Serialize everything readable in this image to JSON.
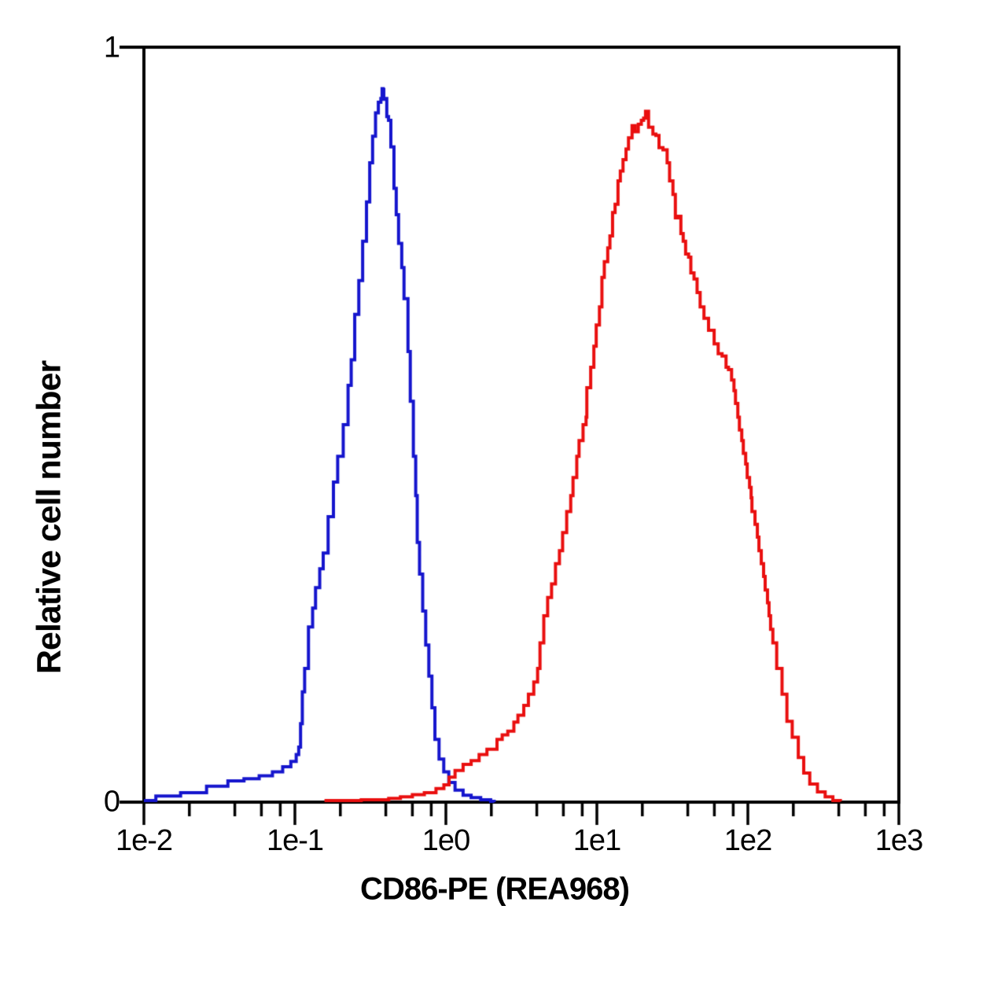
{
  "chart_data": {
    "type": "line",
    "subtype": "flow-cytometry-histogram-overlay",
    "title": "",
    "xlabel": "CD86-PE (REA968)",
    "ylabel": "Relative cell number",
    "x_scale": "log",
    "xlim": [
      0.01,
      1000
    ],
    "ylim": [
      0,
      1
    ],
    "grid": false,
    "legend": "none",
    "axis_color": "#000000",
    "x_ticks": [
      {
        "value": 0.01,
        "label": "1e-2"
      },
      {
        "value": 0.1,
        "label": "1e-1"
      },
      {
        "value": 1,
        "label": "1e0"
      },
      {
        "value": 10,
        "label": "1e1"
      },
      {
        "value": 100,
        "label": "1e2"
      },
      {
        "value": 1000,
        "label": "1e3"
      }
    ],
    "x_minor_tick_multipliers": [
      2,
      4,
      6,
      8
    ],
    "y_ticks": [
      {
        "value": 1,
        "label": "1"
      },
      {
        "value": 0,
        "label": "0"
      }
    ],
    "series": [
      {
        "name": "blue-histogram",
        "color": "#1515CD",
        "peak": {
          "x": 0.38,
          "y": 0.945
        },
        "points": [
          [
            0.01,
            0.002
          ],
          [
            0.012,
            0.008
          ],
          [
            0.0175,
            0.0125
          ],
          [
            0.026,
            0.021
          ],
          [
            0.036,
            0.028
          ],
          [
            0.046,
            0.031
          ],
          [
            0.058,
            0.035
          ],
          [
            0.071,
            0.04
          ],
          [
            0.083,
            0.047
          ],
          [
            0.094,
            0.054
          ],
          [
            0.102,
            0.063
          ],
          [
            0.106,
            0.073
          ],
          [
            0.109,
            0.104
          ],
          [
            0.112,
            0.146
          ],
          [
            0.116,
            0.177
          ],
          [
            0.123,
            0.232
          ],
          [
            0.131,
            0.257
          ],
          [
            0.137,
            0.284
          ],
          [
            0.146,
            0.309
          ],
          [
            0.154,
            0.33
          ],
          [
            0.166,
            0.378
          ],
          [
            0.18,
            0.424
          ],
          [
            0.192,
            0.458
          ],
          [
            0.209,
            0.5
          ],
          [
            0.225,
            0.552
          ],
          [
            0.236,
            0.586
          ],
          [
            0.249,
            0.646
          ],
          [
            0.265,
            0.691
          ],
          [
            0.281,
            0.743
          ],
          [
            0.298,
            0.795
          ],
          [
            0.313,
            0.847
          ],
          [
            0.327,
            0.882
          ],
          [
            0.342,
            0.913
          ],
          [
            0.357,
            0.927
          ],
          [
            0.371,
            0.932
          ],
          [
            0.378,
            0.945
          ],
          [
            0.384,
            0.944
          ],
          [
            0.388,
            0.931
          ],
          [
            0.399,
            0.932
          ],
          [
            0.406,
            0.908
          ],
          [
            0.417,
            0.903
          ],
          [
            0.432,
            0.868
          ],
          [
            0.453,
            0.813
          ],
          [
            0.469,
            0.778
          ],
          [
            0.486,
            0.74
          ],
          [
            0.51,
            0.708
          ],
          [
            0.528,
            0.667
          ],
          [
            0.561,
            0.597
          ],
          [
            0.581,
            0.531
          ],
          [
            0.609,
            0.458
          ],
          [
            0.631,
            0.406
          ],
          [
            0.646,
            0.344
          ],
          [
            0.669,
            0.302
          ],
          [
            0.702,
            0.253
          ],
          [
            0.735,
            0.208
          ],
          [
            0.771,
            0.167
          ],
          [
            0.808,
            0.125
          ],
          [
            0.846,
            0.083
          ],
          [
            0.901,
            0.057
          ],
          [
            0.968,
            0.04
          ],
          [
            1.045,
            0.026
          ],
          [
            1.15,
            0.016
          ],
          [
            1.3,
            0.009
          ],
          [
            1.47,
            0.006
          ],
          [
            1.7,
            0.003
          ],
          [
            1.98,
            0.001
          ],
          [
            2.09,
            0.0
          ]
        ]
      },
      {
        "name": "red-histogram",
        "color": "#E90F0F",
        "peak": {
          "x": 21.3,
          "y": 0.915
        },
        "points": [
          [
            0.157,
            0.002
          ],
          [
            0.275,
            0.003
          ],
          [
            0.418,
            0.005
          ],
          [
            0.5,
            0.007
          ],
          [
            0.6,
            0.01
          ],
          [
            0.72,
            0.0125
          ],
          [
            0.86,
            0.018
          ],
          [
            0.97,
            0.023
          ],
          [
            1.05,
            0.033
          ],
          [
            1.15,
            0.042
          ],
          [
            1.3,
            0.05
          ],
          [
            1.47,
            0.055
          ],
          [
            1.66,
            0.063
          ],
          [
            1.87,
            0.07
          ],
          [
            2.18,
            0.083
          ],
          [
            2.36,
            0.089
          ],
          [
            2.57,
            0.094
          ],
          [
            2.82,
            0.106
          ],
          [
            3.0,
            0.115
          ],
          [
            3.28,
            0.128
          ],
          [
            3.52,
            0.143
          ],
          [
            3.82,
            0.159
          ],
          [
            4.05,
            0.177
          ],
          [
            4.2,
            0.211
          ],
          [
            4.45,
            0.247
          ],
          [
            4.72,
            0.271
          ],
          [
            5.01,
            0.289
          ],
          [
            5.32,
            0.316
          ],
          [
            5.65,
            0.333
          ],
          [
            5.93,
            0.357
          ],
          [
            6.31,
            0.385
          ],
          [
            6.71,
            0.406
          ],
          [
            6.95,
            0.43
          ],
          [
            7.36,
            0.458
          ],
          [
            7.62,
            0.479
          ],
          [
            8.1,
            0.5
          ],
          [
            8.48,
            0.51
          ],
          [
            8.58,
            0.549
          ],
          [
            9.1,
            0.576
          ],
          [
            9.55,
            0.604
          ],
          [
            9.9,
            0.632
          ],
          [
            10.4,
            0.656
          ],
          [
            10.8,
            0.695
          ],
          [
            11.2,
            0.716
          ],
          [
            11.8,
            0.734
          ],
          [
            12.2,
            0.75
          ],
          [
            12.7,
            0.781
          ],
          [
            13.2,
            0.792
          ],
          [
            13.8,
            0.823
          ],
          [
            14.3,
            0.836
          ],
          [
            14.9,
            0.851
          ],
          [
            15.6,
            0.865
          ],
          [
            16.2,
            0.88
          ],
          [
            17.1,
            0.896
          ],
          [
            17.9,
            0.888
          ],
          [
            18.8,
            0.898
          ],
          [
            19.7,
            0.903
          ],
          [
            20.4,
            0.906
          ],
          [
            21.0,
            0.915
          ],
          [
            21.6,
            0.915
          ],
          [
            22.0,
            0.894
          ],
          [
            23.5,
            0.885
          ],
          [
            24.6,
            0.883
          ],
          [
            25.8,
            0.867
          ],
          [
            27.4,
            0.864
          ],
          [
            29.2,
            0.847
          ],
          [
            30.3,
            0.823
          ],
          [
            31.9,
            0.805
          ],
          [
            33.1,
            0.774
          ],
          [
            34.3,
            0.776
          ],
          [
            36.0,
            0.753
          ],
          [
            37.3,
            0.743
          ],
          [
            38.7,
            0.726
          ],
          [
            40.5,
            0.722
          ],
          [
            41.9,
            0.701
          ],
          [
            44.0,
            0.693
          ],
          [
            46.1,
            0.675
          ],
          [
            48.3,
            0.656
          ],
          [
            51.2,
            0.641
          ],
          [
            54.9,
            0.625
          ],
          [
            59.8,
            0.607
          ],
          [
            63.6,
            0.594
          ],
          [
            67.5,
            0.591
          ],
          [
            71.7,
            0.576
          ],
          [
            74.4,
            0.573
          ],
          [
            78.0,
            0.559
          ],
          [
            80.9,
            0.545
          ],
          [
            82.8,
            0.528
          ],
          [
            85.8,
            0.51
          ],
          [
            87.9,
            0.493
          ],
          [
            91.1,
            0.479
          ],
          [
            93.3,
            0.462
          ],
          [
            96.7,
            0.448
          ],
          [
            99.0,
            0.43
          ],
          [
            102.6,
            0.417
          ],
          [
            105.1,
            0.403
          ],
          [
            106.4,
            0.385
          ],
          [
            111.5,
            0.368
          ],
          [
            115.6,
            0.351
          ],
          [
            118.4,
            0.333
          ],
          [
            122.7,
            0.316
          ],
          [
            127.1,
            0.299
          ],
          [
            130.2,
            0.281
          ],
          [
            134.9,
            0.264
          ],
          [
            138.1,
            0.247
          ],
          [
            141.4,
            0.229
          ],
          [
            146.4,
            0.211
          ],
          [
            155.2,
            0.177
          ],
          [
            168.4,
            0.143
          ],
          [
            181.4,
            0.107
          ],
          [
            196.7,
            0.086
          ],
          [
            215.8,
            0.059
          ],
          [
            234.4,
            0.0385
          ],
          [
            257.0,
            0.024
          ],
          [
            289.0,
            0.0135
          ],
          [
            325.1,
            0.007
          ],
          [
            365.7,
            0.002
          ],
          [
            410,
            0.001
          ]
        ]
      }
    ]
  }
}
